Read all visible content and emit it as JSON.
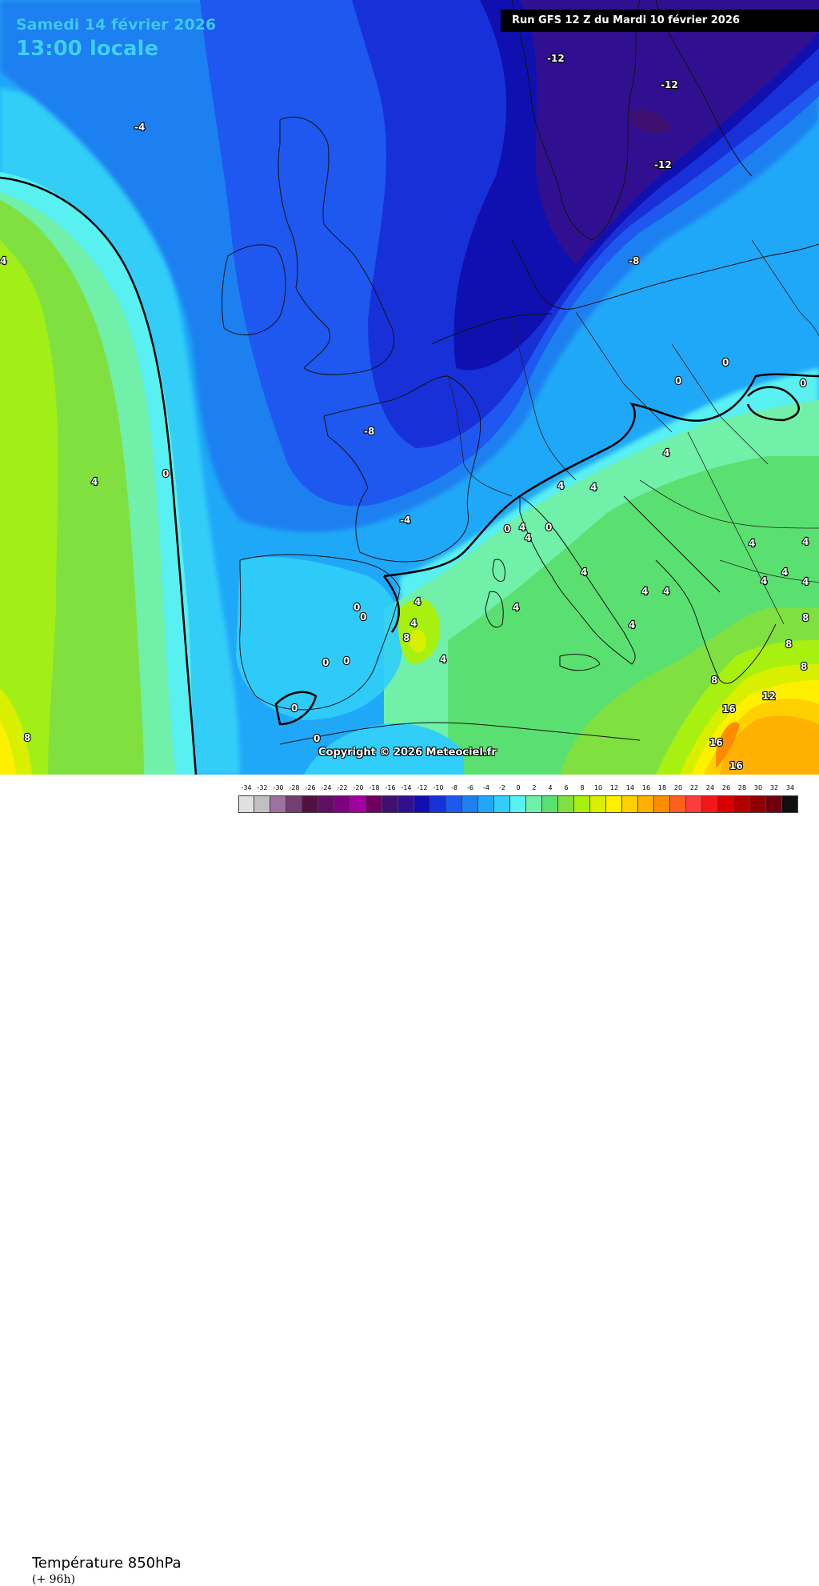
{
  "header": {
    "date": "Samedi 14 février 2026",
    "time": "13:00 locale",
    "run": "Run GFS 12 Z du Mardi 10 février 2026"
  },
  "map_labels": [
    {
      "text": "-12"
    },
    {
      "text": "-12"
    },
    {
      "text": "-12"
    },
    {
      "text": "-4"
    },
    {
      "text": "-8"
    },
    {
      "text": "-8"
    },
    {
      "text": "-4"
    },
    {
      "text": "4"
    },
    {
      "text": "0"
    },
    {
      "text": "4"
    },
    {
      "text": "0"
    },
    {
      "text": "0"
    },
    {
      "text": "0"
    },
    {
      "text": "4"
    },
    {
      "text": "4"
    },
    {
      "text": "4"
    },
    {
      "text": "0"
    },
    {
      "text": "4"
    },
    {
      "text": "4"
    },
    {
      "text": "0"
    },
    {
      "text": "4"
    },
    {
      "text": "4"
    },
    {
      "text": "4"
    },
    {
      "text": "4"
    },
    {
      "text": "4"
    },
    {
      "text": "4"
    },
    {
      "text": "4"
    },
    {
      "text": "4"
    },
    {
      "text": "8"
    },
    {
      "text": "4"
    },
    {
      "text": "0"
    },
    {
      "text": "0"
    },
    {
      "text": "0"
    },
    {
      "text": "0"
    },
    {
      "text": "0"
    },
    {
      "text": "0"
    },
    {
      "text": "8"
    },
    {
      "text": "8"
    },
    {
      "text": "12"
    },
    {
      "text": "16"
    },
    {
      "text": "16"
    },
    {
      "text": "16"
    },
    {
      "text": "4"
    },
    {
      "text": "4"
    },
    {
      "text": "8"
    },
    {
      "text": "8"
    },
    {
      "text": "8"
    },
    {
      "text": "4"
    },
    {
      "text": "4"
    }
  ],
  "copyright": "Copyright © 2026 Meteociel.fr",
  "legend": {
    "title": "Température 850hPa",
    "subtitle": "(+ 96h)",
    "values": [
      "-34",
      "-32",
      "-30",
      "-28",
      "-26",
      "-24",
      "-22",
      "-20",
      "-18",
      "-16",
      "-14",
      "-12",
      "-10",
      "-8",
      "-6",
      "-4",
      "-2",
      "0",
      "2",
      "4",
      "6",
      "8",
      "10",
      "12",
      "14",
      "16",
      "18",
      "20",
      "22",
      "24",
      "26",
      "28",
      "30",
      "32",
      "34"
    ],
    "colors": [
      "#e0e0e0",
      "#c0c0c0",
      "#a070a0",
      "#704070",
      "#501040",
      "#601060",
      "#800080",
      "#a000a0",
      "#700060",
      "#401070",
      "#301090",
      "#1010b0",
      "#1830d8",
      "#1e58ee",
      "#1e80f0",
      "#20a8f8",
      "#30cef8",
      "#58f0f0",
      "#70f0a8",
      "#5ae070",
      "#80e040",
      "#a8f010",
      "#d8f000",
      "#fff000",
      "#ffd000",
      "#ffb000",
      "#ff8c00",
      "#ff6020",
      "#ff3c3c",
      "#f01818",
      "#d80000",
      "#b00000",
      "#900000",
      "#700010",
      "#101010"
    ]
  },
  "colors": {
    "title_text": "#3fc9f5",
    "banner_bg": "#000000",
    "deep_cold": "#1010b0",
    "cold": "#1e58ee",
    "cool": "#20a8f8",
    "mild": "#5ae070",
    "warm": "#ffd000"
  }
}
